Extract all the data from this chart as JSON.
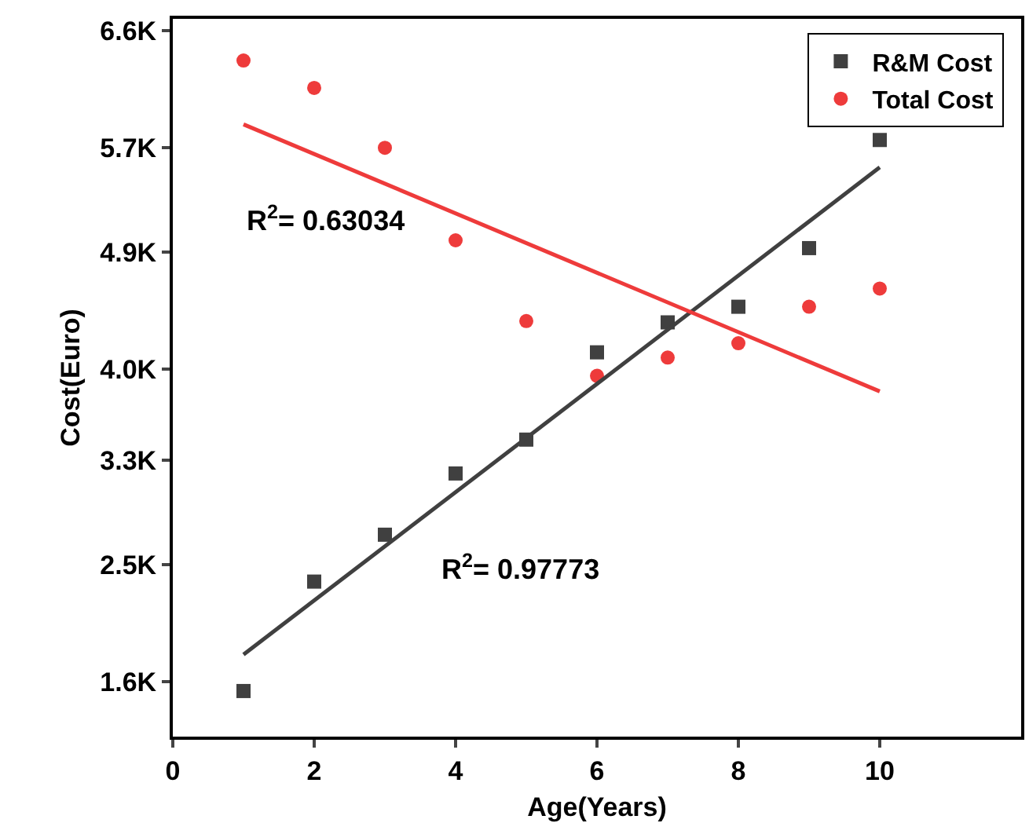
{
  "chart_data": {
    "type": "scatter",
    "xlabel": "Age(Years)",
    "ylabel": "Cost(Euro)",
    "xlim": [
      0,
      12
    ],
    "xticks": [
      0,
      2,
      4,
      6,
      8,
      10
    ],
    "ylim": [
      1180,
      6690
    ],
    "yticks": [
      {
        "value": 1600,
        "label": "1.6K"
      },
      {
        "value": 2500,
        "label": "2.5K"
      },
      {
        "value": 3300,
        "label": "3.3K"
      },
      {
        "value": 4000,
        "label": "4.0K"
      },
      {
        "value": 4900,
        "label": "4.9K"
      },
      {
        "value": 5700,
        "label": "5.7K"
      },
      {
        "value": 6600,
        "label": "6.6K"
      }
    ],
    "grid": false,
    "legend": "top right",
    "series": [
      {
        "name": "R&M Cost",
        "marker": "square",
        "color": "#404040",
        "x": [
          1,
          2,
          3,
          4,
          5,
          6,
          7,
          8,
          9,
          10
        ],
        "values": [
          1530,
          2370,
          2730,
          3200,
          3460,
          4130,
          4360,
          4480,
          4930,
          5760
        ]
      },
      {
        "name": "Total Cost",
        "marker": "circle",
        "color": "#ee3b3b",
        "x": [
          1,
          2,
          3,
          4,
          5,
          6,
          7,
          8,
          9,
          10
        ],
        "values": [
          6370,
          6160,
          5700,
          4990,
          4370,
          3950,
          4090,
          4200,
          4480,
          4620
        ]
      },
      {
        "type": "line",
        "color": "#404040",
        "line_style": "solid",
        "x": [
          1,
          10
        ],
        "values": [
          1810,
          5550
        ]
      },
      {
        "type": "line",
        "color": "#ee3b3b",
        "line_style": "solid",
        "x": [
          1,
          10
        ],
        "values": [
          5880,
          3830
        ]
      }
    ],
    "annotations": [
      "R$^{2}$= 0.63034",
      "R$^{2}$= 0.97773"
    ]
  }
}
